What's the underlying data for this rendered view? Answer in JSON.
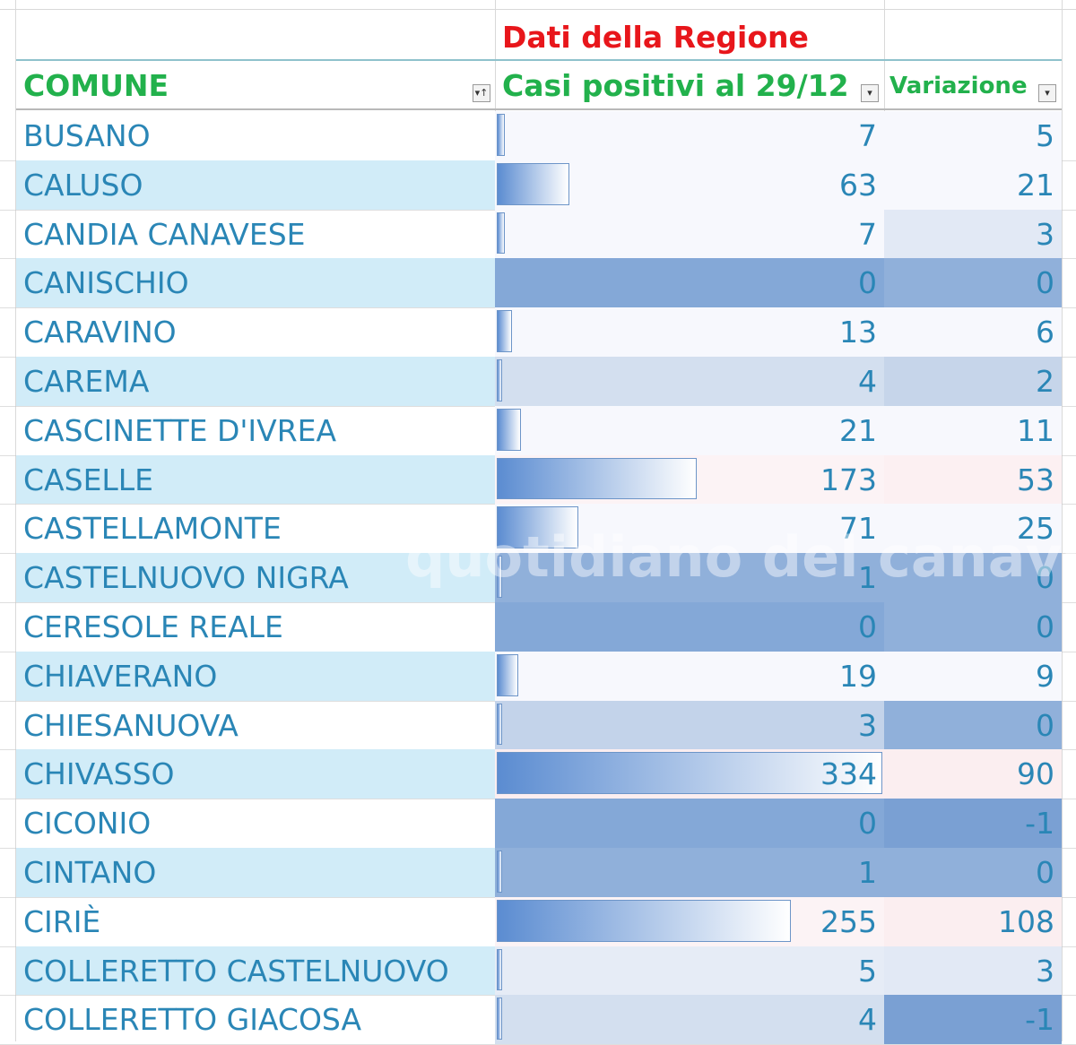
{
  "header": {
    "region_title": "Dati della Regione",
    "col_comune": "COMUNE",
    "col_casi": "Casi positivi al 29/12",
    "col_variazione": "Variazione"
  },
  "filter_buttons": {
    "comune_symbol": "▾↑",
    "casi_symbol": "▾",
    "variazione_symbol": "▾"
  },
  "rows": [
    {
      "comune": "BUSANO",
      "casi": 7,
      "variazione": 5,
      "band": false,
      "val_bg": "#f7f8fd",
      "var_bg": "#f7f8fd"
    },
    {
      "comune": "CALUSO",
      "casi": 63,
      "variazione": 21,
      "band": true,
      "val_bg": "#f7f8fd",
      "var_bg": "#f7f8fd"
    },
    {
      "comune": "CANDIA CANAVESE",
      "casi": 7,
      "variazione": 3,
      "band": false,
      "val_bg": "#f7f8fd",
      "var_bg": "#e2e9f5"
    },
    {
      "comune": "CANISCHIO",
      "casi": 0,
      "variazione": 0,
      "band": true,
      "val_bg": "#84a8d7",
      "var_bg": "#90b0da"
    },
    {
      "comune": "CARAVINO",
      "casi": 13,
      "variazione": 6,
      "band": false,
      "val_bg": "#f7f8fd",
      "var_bg": "#f7f8fd"
    },
    {
      "comune": "CAREMA",
      "casi": 4,
      "variazione": 2,
      "band": true,
      "val_bg": "#d3dfef",
      "var_bg": "#c6d5ea"
    },
    {
      "comune": "CASCINETTE D'IVREA",
      "casi": 21,
      "variazione": 11,
      "band": false,
      "val_bg": "#f7f8fd",
      "var_bg": "#f7f8fd"
    },
    {
      "comune": "CASELLE",
      "casi": 173,
      "variazione": 53,
      "band": true,
      "val_bg": "#fcf3f5",
      "var_bg": "#fcf0f2"
    },
    {
      "comune": "CASTELLAMONTE",
      "casi": 71,
      "variazione": 25,
      "band": false,
      "val_bg": "#f7f8fd",
      "var_bg": "#f7f8fd"
    },
    {
      "comune": "CASTELNUOVO NIGRA",
      "casi": 1,
      "variazione": 0,
      "band": true,
      "val_bg": "#90b0da",
      "var_bg": "#90b0da"
    },
    {
      "comune": "CERESOLE REALE",
      "casi": 0,
      "variazione": 0,
      "band": false,
      "val_bg": "#84a8d7",
      "var_bg": "#90b0da"
    },
    {
      "comune": "CHIAVERANO",
      "casi": 19,
      "variazione": 9,
      "band": true,
      "val_bg": "#f7f8fd",
      "var_bg": "#f7f8fd"
    },
    {
      "comune": "CHIESANUOVA",
      "casi": 3,
      "variazione": 0,
      "band": false,
      "val_bg": "#c3d3ea",
      "var_bg": "#90b0da"
    },
    {
      "comune": "CHIVASSO",
      "casi": 334,
      "variazione": 90,
      "band": true,
      "val_bg": "#fbeef0",
      "var_bg": "#fbeef0"
    },
    {
      "comune": "CICONIO",
      "casi": 0,
      "variazione": -1,
      "band": false,
      "val_bg": "#84a8d7",
      "var_bg": "#7aa0d3"
    },
    {
      "comune": "CINTANO",
      "casi": 1,
      "variazione": 0,
      "band": true,
      "val_bg": "#90b0da",
      "var_bg": "#90b0da"
    },
    {
      "comune": "CIRIÈ",
      "casi": 255,
      "variazione": 108,
      "band": false,
      "val_bg": "#fcf3f5",
      "var_bg": "#fbeef0"
    },
    {
      "comune": "COLLERETTO CASTELNUOVO",
      "casi": 5,
      "variazione": 3,
      "band": true,
      "val_bg": "#e6ecf6",
      "var_bg": "#e2e9f5"
    },
    {
      "comune": "COLLERETTO GIACOSA",
      "casi": 4,
      "variazione": -1,
      "band": false,
      "val_bg": "#d3dfef",
      "var_bg": "#7aa0d3"
    }
  ],
  "data_bar_max": 334,
  "watermark": "quotidiano del canavese"
}
